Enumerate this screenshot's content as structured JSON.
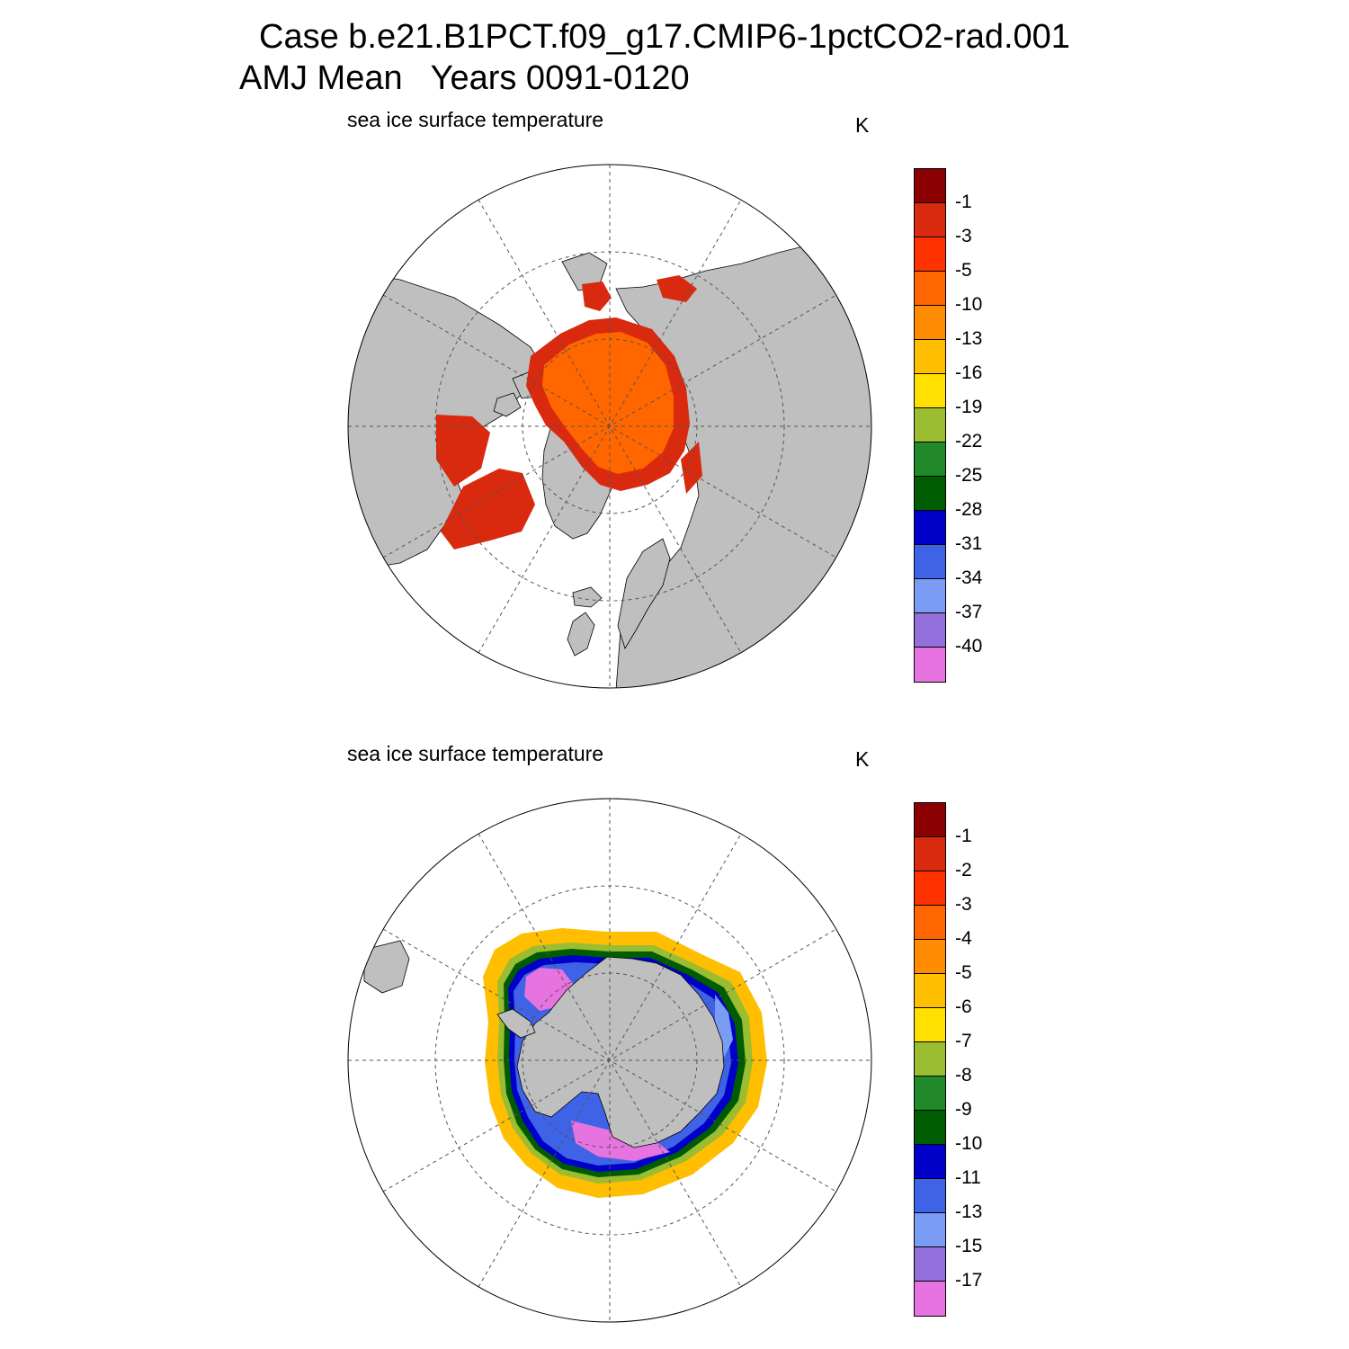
{
  "title": {
    "line1": "Case b.e21.B1PCT.f09_g17.CMIP6-1pctCO2-rad.001",
    "line2": "AMJ Mean   Years 0091-0120"
  },
  "colors": {
    "land": "#bfbfbf",
    "ocean": "#ffffff",
    "gridline": "#555555"
  },
  "panels": [
    {
      "hemisphere": "north",
      "variable_label": "sea ice surface temperature",
      "units": "K",
      "colorbar": {
        "colors": [
          "#8b0000",
          "#d9290f",
          "#ff3300",
          "#ff6600",
          "#ff8c00",
          "#ffbf00",
          "#ffe000",
          "#9abd32",
          "#22892a",
          "#005c00",
          "#0000c8",
          "#3f63e6",
          "#7a9cf5",
          "#9370db",
          "#e673e0"
        ],
        "labels": [
          "-1",
          "-3",
          "-5",
          "-10",
          "-13",
          "-16",
          "-19",
          "-22",
          "-25",
          "-28",
          "-31",
          "-34",
          "-37",
          "-40"
        ]
      }
    },
    {
      "hemisphere": "south",
      "variable_label": "sea ice surface temperature",
      "units": "K",
      "colorbar": {
        "colors": [
          "#8b0000",
          "#d9290f",
          "#ff3300",
          "#ff6600",
          "#ff8c00",
          "#ffbf00",
          "#ffe000",
          "#9abd32",
          "#22892a",
          "#005c00",
          "#0000c8",
          "#3f63e6",
          "#7a9cf5",
          "#9370db",
          "#e673e0"
        ],
        "labels": [
          "-1",
          "-2",
          "-3",
          "-4",
          "-5",
          "-6",
          "-7",
          "-8",
          "-9",
          "-10",
          "-11",
          "-13",
          "-15",
          "-17"
        ]
      }
    }
  ]
}
